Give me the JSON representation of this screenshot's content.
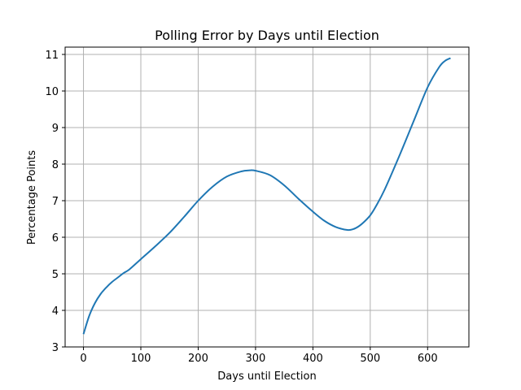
{
  "chart_data": {
    "type": "line",
    "title": "Polling Error by Days until Election",
    "xlabel": "Days until Election",
    "ylabel": "Percentage Points",
    "xlim": [
      -32,
      672
    ],
    "ylim": [
      3,
      11.2
    ],
    "xticks": [
      0,
      100,
      200,
      300,
      400,
      500,
      600
    ],
    "yticks": [
      3,
      4,
      5,
      6,
      7,
      8,
      9,
      10,
      11
    ],
    "grid": true,
    "series": [
      {
        "color": "#1f77b4",
        "x": [
          0,
          10,
          20,
          30,
          40,
          50,
          60,
          70,
          80,
          100,
          125,
          150,
          175,
          200,
          225,
          250,
          275,
          290,
          300,
          325,
          350,
          375,
          400,
          420,
          440,
          460,
          470,
          480,
          490,
          500,
          510,
          525,
          550,
          575,
          600,
          620,
          630,
          640
        ],
        "y": [
          3.35,
          3.85,
          4.2,
          4.45,
          4.63,
          4.78,
          4.9,
          5.02,
          5.12,
          5.4,
          5.75,
          6.12,
          6.55,
          7.0,
          7.38,
          7.66,
          7.8,
          7.83,
          7.82,
          7.7,
          7.42,
          7.05,
          6.7,
          6.45,
          6.28,
          6.2,
          6.22,
          6.3,
          6.43,
          6.6,
          6.85,
          7.3,
          8.2,
          9.15,
          10.1,
          10.65,
          10.82,
          10.9
        ]
      }
    ]
  }
}
